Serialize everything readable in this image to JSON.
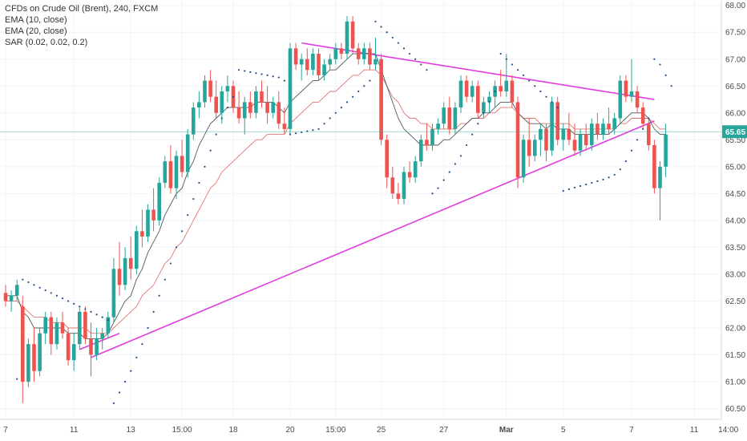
{
  "legend": {
    "title": "CFDs on Crude Oil (Brent), 240, FXCM",
    "ema10": "EMA (10, close)",
    "ema20": "EMA (20, close)",
    "sar": "SAR (0.02, 0.02, 0.2)"
  },
  "colors": {
    "up": "#26a69a",
    "down": "#ef5350",
    "ema10": "#4d5a59",
    "ema20": "#e57373",
    "sar": "#1e4f8a",
    "trendline": "#e23ce0",
    "price_line": "#26a69a"
  },
  "chart_data": {
    "type": "candlestick",
    "title": "CFDs on Crude Oil (Brent), 240, FXCM",
    "ylim": [
      60.3,
      68.1
    ],
    "y_ticks": [
      60.5,
      61.0,
      61.5,
      62.0,
      62.5,
      63.0,
      63.5,
      64.0,
      64.5,
      65.0,
      65.5,
      66.0,
      66.5,
      67.0,
      67.5,
      68.0
    ],
    "y_tick_labels": [
      "60.50",
      "61.00",
      "61.50",
      "62.00",
      "62.50",
      "63.00",
      "63.50",
      "64.00",
      "64.50",
      "65.00",
      "65.50",
      "66.00",
      "66.50",
      "67.00",
      "67.50",
      "68.00"
    ],
    "x_ticks": [
      {
        "label": "7",
        "index": 0
      },
      {
        "label": "11",
        "index": 12
      },
      {
        "label": "13",
        "index": 22
      },
      {
        "label": "15:00",
        "index": 31
      },
      {
        "label": "18",
        "index": 40
      },
      {
        "label": "20",
        "index": 50
      },
      {
        "label": "15:00",
        "index": 58
      },
      {
        "label": "25",
        "index": 66
      },
      {
        "label": "27",
        "index": 77
      },
      {
        "label": "Mar",
        "index": 88
      },
      {
        "label": "5",
        "index": 98
      },
      {
        "label": "7",
        "index": 110
      },
      {
        "label": "11",
        "index": 121
      },
      {
        "label": "14:00",
        "index": 127
      }
    ],
    "current_price": 65.65,
    "current_price_label": "65.65",
    "candles": [
      [
        62.65,
        62.8,
        62.4,
        62.5
      ],
      [
        62.5,
        62.7,
        62.3,
        62.6
      ],
      [
        62.6,
        62.9,
        62.5,
        62.8
      ],
      [
        62.4,
        62.6,
        60.6,
        61.0
      ],
      [
        61.0,
        61.8,
        60.9,
        61.7
      ],
      [
        61.7,
        62.0,
        61.0,
        61.2
      ],
      [
        61.2,
        62.0,
        61.1,
        61.9
      ],
      [
        61.9,
        62.3,
        61.7,
        62.2
      ],
      [
        62.2,
        62.3,
        61.5,
        61.7
      ],
      [
        61.7,
        62.2,
        61.6,
        62.1
      ],
      [
        62.1,
        62.3,
        61.8,
        61.9
      ],
      [
        61.9,
        62.0,
        61.3,
        61.4
      ],
      [
        61.4,
        61.9,
        61.2,
        61.7
      ],
      [
        61.7,
        62.4,
        61.6,
        62.3
      ],
      [
        62.3,
        62.4,
        61.7,
        61.8
      ],
      [
        61.8,
        62.1,
        61.1,
        61.5
      ],
      [
        61.5,
        62.0,
        61.4,
        61.8
      ],
      [
        61.8,
        62.0,
        61.6,
        61.9
      ],
      [
        61.9,
        62.3,
        61.8,
        62.2
      ],
      [
        62.2,
        63.3,
        62.1,
        63.1
      ],
      [
        63.1,
        63.6,
        62.6,
        62.8
      ],
      [
        62.8,
        63.5,
        62.7,
        63.3
      ],
      [
        63.3,
        63.7,
        62.9,
        63.1
      ],
      [
        63.1,
        63.9,
        63.0,
        63.8
      ],
      [
        63.8,
        64.2,
        63.5,
        63.7
      ],
      [
        63.7,
        64.3,
        63.6,
        64.2
      ],
      [
        64.2,
        64.6,
        63.8,
        64.0
      ],
      [
        64.0,
        64.8,
        63.9,
        64.7
      ],
      [
        64.7,
        65.2,
        64.6,
        65.1
      ],
      [
        65.1,
        65.4,
        64.5,
        64.6
      ],
      [
        64.6,
        65.3,
        64.4,
        65.2
      ],
      [
        65.2,
        65.5,
        64.8,
        64.9
      ],
      [
        64.9,
        65.7,
        64.8,
        65.6
      ],
      [
        65.6,
        66.2,
        65.5,
        66.1
      ],
      [
        66.1,
        66.4,
        65.9,
        66.2
      ],
      [
        66.2,
        66.7,
        66.1,
        66.6
      ],
      [
        66.6,
        66.8,
        66.2,
        66.3
      ],
      [
        66.3,
        66.6,
        65.9,
        66.0
      ],
      [
        66.0,
        66.5,
        65.8,
        66.4
      ],
      [
        66.4,
        66.7,
        66.2,
        66.5
      ],
      [
        66.5,
        66.6,
        66.0,
        66.1
      ],
      [
        66.1,
        66.4,
        65.8,
        65.9
      ],
      [
        65.9,
        66.3,
        65.6,
        66.2
      ],
      [
        66.2,
        66.4,
        65.9,
        66.0
      ],
      [
        66.0,
        66.5,
        65.9,
        66.4
      ],
      [
        66.4,
        66.6,
        66.1,
        66.2
      ],
      [
        66.2,
        66.5,
        65.8,
        66.0
      ],
      [
        66.0,
        66.3,
        65.9,
        66.2
      ],
      [
        66.2,
        66.4,
        65.7,
        65.8
      ],
      [
        65.8,
        66.1,
        65.6,
        65.7
      ],
      [
        65.7,
        67.3,
        65.6,
        67.2
      ],
      [
        67.2,
        67.3,
        66.8,
        66.9
      ],
      [
        66.9,
        67.1,
        66.6,
        67.0
      ],
      [
        67.0,
        67.2,
        66.7,
        66.8
      ],
      [
        66.8,
        67.2,
        66.7,
        67.1
      ],
      [
        67.1,
        67.2,
        66.6,
        66.7
      ],
      [
        66.7,
        67.0,
        66.6,
        66.9
      ],
      [
        66.9,
        67.1,
        66.8,
        67.0
      ],
      [
        67.0,
        67.3,
        66.9,
        67.2
      ],
      [
        67.2,
        67.3,
        67.0,
        67.1
      ],
      [
        67.1,
        67.8,
        67.0,
        67.7
      ],
      [
        67.7,
        67.8,
        67.1,
        67.2
      ],
      [
        67.2,
        67.3,
        66.9,
        67.0
      ],
      [
        67.0,
        67.3,
        66.9,
        67.2
      ],
      [
        67.2,
        67.3,
        66.8,
        66.9
      ],
      [
        66.9,
        67.4,
        66.8,
        67.0
      ],
      [
        67.0,
        67.1,
        65.4,
        65.5
      ],
      [
        65.5,
        65.6,
        64.6,
        64.8
      ],
      [
        64.8,
        65.0,
        64.4,
        64.5
      ],
      [
        64.5,
        64.7,
        64.3,
        64.4
      ],
      [
        64.4,
        65.0,
        64.3,
        64.9
      ],
      [
        64.9,
        65.1,
        64.7,
        64.8
      ],
      [
        64.8,
        65.2,
        64.7,
        65.1
      ],
      [
        65.1,
        65.6,
        65.0,
        65.5
      ],
      [
        65.5,
        65.8,
        65.3,
        65.4
      ],
      [
        65.4,
        65.8,
        65.3,
        65.7
      ],
      [
        65.7,
        65.9,
        65.6,
        65.8
      ],
      [
        65.8,
        66.2,
        65.7,
        66.1
      ],
      [
        66.1,
        66.3,
        65.6,
        65.7
      ],
      [
        65.7,
        66.2,
        65.6,
        66.1
      ],
      [
        66.1,
        66.7,
        66.0,
        66.6
      ],
      [
        66.6,
        66.7,
        66.2,
        66.3
      ],
      [
        66.3,
        66.6,
        66.2,
        66.5
      ],
      [
        66.5,
        66.6,
        65.9,
        66.0
      ],
      [
        66.0,
        66.3,
        65.9,
        66.2
      ],
      [
        66.2,
        66.4,
        66.0,
        66.3
      ],
      [
        66.3,
        66.6,
        66.1,
        66.5
      ],
      [
        66.5,
        66.8,
        66.3,
        66.4
      ],
      [
        66.4,
        67.1,
        66.3,
        66.6
      ],
      [
        66.6,
        66.7,
        66.1,
        66.2
      ],
      [
        66.2,
        66.3,
        64.6,
        64.8
      ],
      [
        64.8,
        65.6,
        64.7,
        65.5
      ],
      [
        65.5,
        65.9,
        65.0,
        65.2
      ],
      [
        65.2,
        65.6,
        65.1,
        65.5
      ],
      [
        65.5,
        65.8,
        65.2,
        65.7
      ],
      [
        65.7,
        65.8,
        65.1,
        65.3
      ],
      [
        65.3,
        66.3,
        65.2,
        66.2
      ],
      [
        66.2,
        66.3,
        65.4,
        65.5
      ],
      [
        65.5,
        65.8,
        65.3,
        65.7
      ],
      [
        65.7,
        66.0,
        65.4,
        65.5
      ],
      [
        65.5,
        65.8,
        65.2,
        65.3
      ],
      [
        65.3,
        65.7,
        65.2,
        65.6
      ],
      [
        65.6,
        65.8,
        65.3,
        65.4
      ],
      [
        65.4,
        65.9,
        65.3,
        65.8
      ],
      [
        65.8,
        66.0,
        65.5,
        65.6
      ],
      [
        65.6,
        65.9,
        65.5,
        65.8
      ],
      [
        65.8,
        66.1,
        65.6,
        65.7
      ],
      [
        65.7,
        66.0,
        65.6,
        65.9
      ],
      [
        65.9,
        66.7,
        65.8,
        66.6
      ],
      [
        66.6,
        66.7,
        66.2,
        66.3
      ],
      [
        66.3,
        67.0,
        66.2,
        66.4
      ],
      [
        66.4,
        66.5,
        66.0,
        66.1
      ],
      [
        66.1,
        66.2,
        65.7,
        65.8
      ],
      [
        65.8,
        65.9,
        65.3,
        65.4
      ],
      [
        65.4,
        65.5,
        64.5,
        64.6
      ],
      [
        64.6,
        65.1,
        64.0,
        65.0
      ],
      [
        65.0,
        65.8,
        64.8,
        65.6
      ]
    ],
    "ema10": [
      62.6,
      62.6,
      62.6,
      62.3,
      62.2,
      62.0,
      62.0,
      62.0,
      62.0,
      62.0,
      62.0,
      61.9,
      61.9,
      61.9,
      61.8,
      61.8,
      61.8,
      61.8,
      61.9,
      62.1,
      62.3,
      62.5,
      62.6,
      62.9,
      63.1,
      63.4,
      63.6,
      63.8,
      64.1,
      64.3,
      64.5,
      64.6,
      64.9,
      65.1,
      65.4,
      65.6,
      65.8,
      65.9,
      66.0,
      66.1,
      66.1,
      66.1,
      66.1,
      66.1,
      66.2,
      66.2,
      66.2,
      66.2,
      66.1,
      66.0,
      66.2,
      66.3,
      66.4,
      66.5,
      66.6,
      66.6,
      66.7,
      66.8,
      66.8,
      66.9,
      67.0,
      67.1,
      67.1,
      67.1,
      67.1,
      67.1,
      66.8,
      66.5,
      66.2,
      65.9,
      65.7,
      65.6,
      65.5,
      65.4,
      65.4,
      65.4,
      65.4,
      65.5,
      65.5,
      65.6,
      65.7,
      65.8,
      65.9,
      65.9,
      66.0,
      66.0,
      66.1,
      66.2,
      66.2,
      66.2,
      66.0,
      65.9,
      65.8,
      65.8,
      65.8,
      65.7,
      65.8,
      65.7,
      65.7,
      65.7,
      65.6,
      65.6,
      65.6,
      65.6,
      65.6,
      65.6,
      65.6,
      65.7,
      65.8,
      65.9,
      66.0,
      66.0,
      66.0,
      65.9,
      65.7,
      65.6,
      65.6
    ],
    "ema20": [
      62.5,
      62.5,
      62.5,
      62.4,
      62.3,
      62.2,
      62.2,
      62.2,
      62.1,
      62.1,
      62.1,
      62.0,
      62.0,
      62.0,
      62.0,
      61.9,
      61.9,
      61.9,
      61.9,
      62.0,
      62.1,
      62.2,
      62.3,
      62.4,
      62.6,
      62.7,
      62.8,
      63.0,
      63.2,
      63.3,
      63.5,
      63.6,
      63.8,
      64.0,
      64.2,
      64.4,
      64.6,
      64.7,
      64.9,
      65.0,
      65.1,
      65.2,
      65.3,
      65.4,
      65.5,
      65.5,
      65.6,
      65.6,
      65.6,
      65.6,
      65.8,
      65.9,
      66.0,
      66.1,
      66.2,
      66.2,
      66.3,
      66.4,
      66.4,
      66.5,
      66.6,
      66.7,
      66.7,
      66.8,
      66.8,
      66.8,
      66.7,
      66.5,
      66.3,
      66.2,
      66.0,
      65.9,
      65.9,
      65.8,
      65.8,
      65.7,
      65.7,
      65.7,
      65.7,
      65.7,
      65.8,
      65.8,
      65.9,
      65.9,
      65.9,
      66.0,
      66.0,
      66.1,
      66.1,
      66.1,
      66.0,
      65.9,
      65.9,
      65.9,
      65.8,
      65.8,
      65.8,
      65.8,
      65.8,
      65.8,
      65.7,
      65.7,
      65.7,
      65.7,
      65.7,
      65.7,
      65.7,
      65.7,
      65.8,
      65.8,
      65.9,
      65.9,
      65.9,
      65.9,
      65.8,
      65.7,
      65.7
    ],
    "sar": [
      [
        2,
        61.05
      ],
      [
        3,
        62.9
      ],
      [
        4,
        62.85
      ],
      [
        5,
        62.8
      ],
      [
        6,
        62.75
      ],
      [
        7,
        62.7
      ],
      [
        8,
        62.65
      ],
      [
        9,
        62.6
      ],
      [
        10,
        62.55
      ],
      [
        11,
        62.5
      ],
      [
        12,
        62.45
      ],
      [
        13,
        62.4
      ],
      [
        14,
        62.35
      ],
      [
        15,
        62.3
      ],
      [
        16,
        62.25
      ],
      [
        17,
        62.2
      ],
      [
        18,
        62.15
      ],
      [
        19,
        60.6
      ],
      [
        20,
        60.8
      ],
      [
        21,
        61.0
      ],
      [
        22,
        61.2
      ],
      [
        23,
        61.45
      ],
      [
        24,
        61.7
      ],
      [
        25,
        62.0
      ],
      [
        26,
        62.3
      ],
      [
        27,
        62.6
      ],
      [
        28,
        62.9
      ],
      [
        29,
        63.2
      ],
      [
        30,
        63.5
      ],
      [
        31,
        63.8
      ],
      [
        32,
        64.1
      ],
      [
        33,
        64.4
      ],
      [
        34,
        64.7
      ],
      [
        35,
        65.0
      ],
      [
        36,
        65.3
      ],
      [
        37,
        65.6
      ],
      [
        38,
        65.9
      ],
      [
        39,
        66.1
      ],
      [
        40,
        66.3
      ],
      [
        41,
        66.8
      ],
      [
        42,
        66.78
      ],
      [
        43,
        66.76
      ],
      [
        44,
        66.74
      ],
      [
        45,
        66.72
      ],
      [
        46,
        66.7
      ],
      [
        47,
        66.68
      ],
      [
        48,
        66.66
      ],
      [
        49,
        66.6
      ],
      [
        50,
        65.6
      ],
      [
        51,
        65.62
      ],
      [
        52,
        65.64
      ],
      [
        53,
        65.66
      ],
      [
        54,
        65.68
      ],
      [
        55,
        65.7
      ],
      [
        56,
        65.8
      ],
      [
        57,
        65.9
      ],
      [
        58,
        66.0
      ],
      [
        59,
        66.1
      ],
      [
        60,
        66.2
      ],
      [
        61,
        66.3
      ],
      [
        62,
        66.4
      ],
      [
        63,
        66.5
      ],
      [
        64,
        66.6
      ],
      [
        65,
        67.7
      ],
      [
        66,
        67.6
      ],
      [
        67,
        67.5
      ],
      [
        68,
        67.4
      ],
      [
        69,
        67.3
      ],
      [
        70,
        67.2
      ],
      [
        71,
        67.1
      ],
      [
        72,
        67.0
      ],
      [
        73,
        66.9
      ],
      [
        74,
        66.8
      ],
      [
        75,
        64.5
      ],
      [
        76,
        64.6
      ],
      [
        77,
        64.75
      ],
      [
        78,
        64.9
      ],
      [
        79,
        65.05
      ],
      [
        80,
        65.2
      ],
      [
        81,
        65.4
      ],
      [
        82,
        65.6
      ],
      [
        83,
        65.8
      ],
      [
        84,
        66.0
      ],
      [
        85,
        66.2
      ],
      [
        86,
        66.4
      ],
      [
        87,
        67.1
      ],
      [
        88,
        67.0
      ],
      [
        89,
        66.9
      ],
      [
        90,
        66.8
      ],
      [
        91,
        66.7
      ],
      [
        92,
        66.6
      ],
      [
        93,
        66.5
      ],
      [
        94,
        66.4
      ],
      [
        95,
        66.3
      ],
      [
        96,
        66.2
      ],
      [
        97,
        66.1
      ],
      [
        98,
        64.55
      ],
      [
        99,
        64.58
      ],
      [
        100,
        64.61
      ],
      [
        101,
        64.64
      ],
      [
        102,
        64.67
      ],
      [
        103,
        64.7
      ],
      [
        104,
        64.73
      ],
      [
        105,
        64.76
      ],
      [
        106,
        64.8
      ],
      [
        107,
        64.85
      ],
      [
        108,
        64.95
      ],
      [
        109,
        65.1
      ],
      [
        110,
        65.3
      ],
      [
        111,
        65.5
      ],
      [
        112,
        65.7
      ],
      [
        113,
        65.9
      ],
      [
        114,
        67.0
      ],
      [
        115,
        66.9
      ],
      [
        116,
        66.7
      ],
      [
        117,
        66.5
      ]
    ],
    "trendlines": [
      {
        "from": [
          15,
          61.45
        ],
        "to": [
          114,
          65.85
        ]
      },
      {
        "from": [
          52,
          67.3
        ],
        "to": [
          114,
          66.25
        ]
      },
      {
        "from": [
          13,
          61.6
        ],
        "to": [
          20,
          61.9
        ]
      }
    ]
  }
}
